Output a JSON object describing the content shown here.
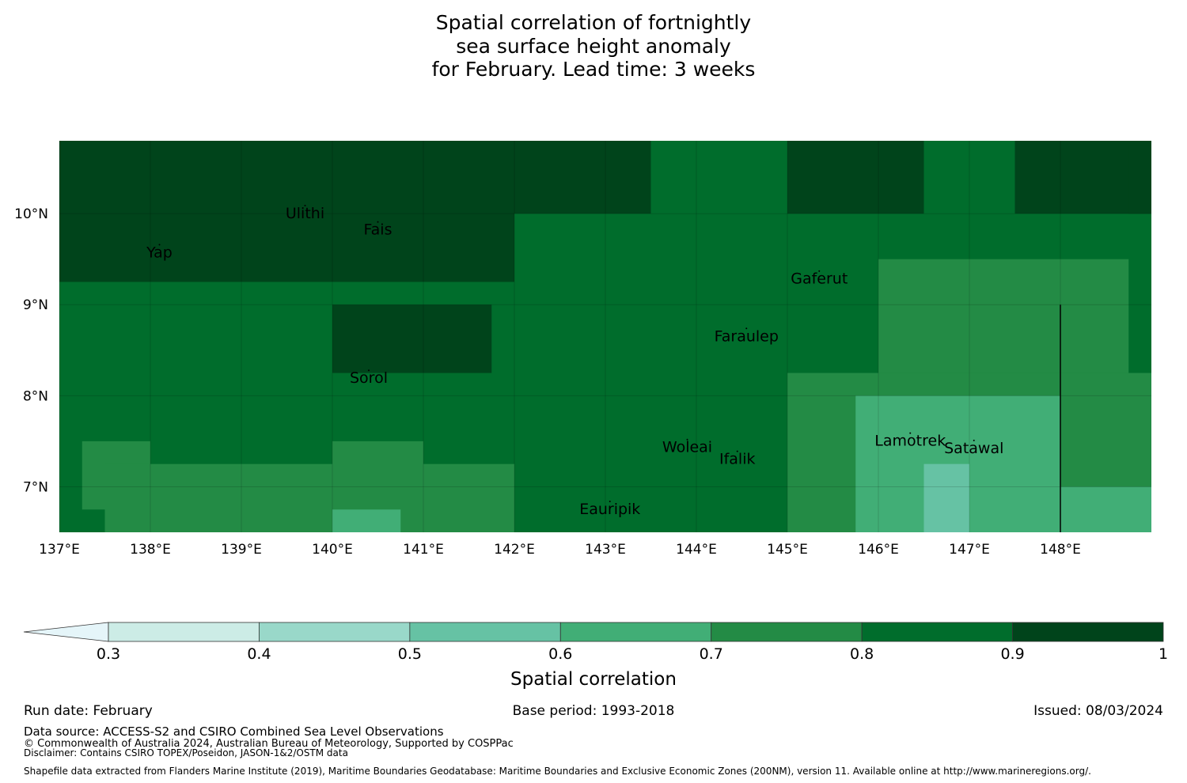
{
  "title_lines": [
    "Spatial correlation of fortnightly",
    "sea surface height anomaly",
    "for February. Lead time: 3 weeks"
  ],
  "chart_data": {
    "type": "heatmap",
    "lon_range": [
      137,
      149
    ],
    "lat_range": [
      6.5,
      10.8
    ],
    "cell_deg": 0.25,
    "x_ticks": [
      {
        "value": 137,
        "label": "137°E"
      },
      {
        "value": 138,
        "label": "138°E"
      },
      {
        "value": 139,
        "label": "139°E"
      },
      {
        "value": 140,
        "label": "140°E"
      },
      {
        "value": 141,
        "label": "141°E"
      },
      {
        "value": 142,
        "label": "142°E"
      },
      {
        "value": 143,
        "label": "143°E"
      },
      {
        "value": 144,
        "label": "144°E"
      },
      {
        "value": 145,
        "label": "145°E"
      },
      {
        "value": 146,
        "label": "146°E"
      },
      {
        "value": 147,
        "label": "147°E"
      },
      {
        "value": 148,
        "label": "148°E"
      }
    ],
    "y_ticks": [
      {
        "value": 10,
        "label": "10°N"
      },
      {
        "value": 9,
        "label": "9°N"
      },
      {
        "value": 8,
        "label": "8°N"
      },
      {
        "value": 7,
        "label": "7°N"
      }
    ],
    "levels": [
      0.3,
      0.4,
      0.5,
      0.6,
      0.7,
      0.8,
      0.9,
      1
    ],
    "level_labels": [
      "0.3",
      "0.4",
      "0.5",
      "0.6",
      "0.7",
      "0.8",
      "0.9",
      "1"
    ],
    "colors": [
      "#e5f5f9",
      "#ccece6",
      "#99d8c9",
      "#66c2a4",
      "#41ae76",
      "#238b45",
      "#006d2c",
      "#00441b"
    ],
    "colorbar_label": "Spatial correlation",
    "regions": [
      {
        "band": 0.95,
        "lon": [
          137,
          149
        ],
        "lat": [
          6.5,
          10.8
        ]
      },
      {
        "band": 0.85,
        "lon": [
          143.5,
          147.5
        ],
        "lat": [
          9.5,
          10.8
        ]
      },
      {
        "band": 0.85,
        "lon": [
          137,
          142
        ],
        "lat": [
          6.5,
          9.25
        ]
      },
      {
        "band": 0.85,
        "lon": [
          142,
          149
        ],
        "lat": [
          6.5,
          10.0
        ]
      },
      {
        "band": 0.95,
        "lon": [
          145.0,
          146.5
        ],
        "lat": [
          10.0,
          10.8
        ]
      },
      {
        "band": 0.95,
        "lon": [
          148.75,
          149
        ],
        "lat": [
          10.0,
          10.75
        ]
      },
      {
        "band": 0.95,
        "lon": [
          140,
          141.75
        ],
        "lat": [
          8.25,
          9.0
        ]
      },
      {
        "band": 0.75,
        "lon": [
          137.25,
          138.0
        ],
        "lat": [
          6.75,
          7.5
        ]
      },
      {
        "band": 0.75,
        "lon": [
          137.5,
          142
        ],
        "lat": [
          6.5,
          7.25
        ]
      },
      {
        "band": 0.75,
        "lon": [
          140,
          141.0
        ],
        "lat": [
          6.5,
          7.5
        ]
      },
      {
        "band": 0.65,
        "lon": [
          140.0,
          140.75
        ],
        "lat": [
          6.5,
          6.75
        ]
      },
      {
        "band": 0.75,
        "lon": [
          145.0,
          149
        ],
        "lat": [
          6.5,
          8.25
        ]
      },
      {
        "band": 0.75,
        "lon": [
          146.0,
          148.75
        ],
        "lat": [
          8.25,
          9.5
        ]
      },
      {
        "band": 0.65,
        "lon": [
          145.75,
          148.0
        ],
        "lat": [
          6.5,
          8.0
        ]
      },
      {
        "band": 0.65,
        "lon": [
          148.0,
          149
        ],
        "lat": [
          6.5,
          7.0
        ]
      },
      {
        "band": 0.55,
        "lon": [
          146.5,
          147.0
        ],
        "lat": [
          6.5,
          7.25
        ]
      }
    ],
    "places": [
      {
        "name": "Ulithi",
        "lon": 139.7,
        "lat": 9.95
      },
      {
        "name": "Fais",
        "lon": 140.5,
        "lat": 9.77
      },
      {
        "name": "Yap",
        "lon": 138.1,
        "lat": 9.52
      },
      {
        "name": "Gaferut",
        "lon": 145.35,
        "lat": 9.23
      },
      {
        "name": "Faraulep",
        "lon": 144.55,
        "lat": 8.6
      },
      {
        "name": "Sorol",
        "lon": 140.4,
        "lat": 8.14
      },
      {
        "name": "Woleai",
        "lon": 143.9,
        "lat": 7.38
      },
      {
        "name": "Ifalik",
        "lon": 144.45,
        "lat": 7.25
      },
      {
        "name": "Lamotrek",
        "lon": 146.35,
        "lat": 7.45
      },
      {
        "name": "Satawal",
        "lon": 147.05,
        "lat": 7.37
      },
      {
        "name": "Eauripik",
        "lon": 143.05,
        "lat": 6.7
      }
    ]
  },
  "footer": {
    "run_date": "Run date: February",
    "base_period": "Base period: 1993-2018",
    "issued": "Issued: 08/03/2024",
    "data_source": "Data source: ACCESS-S2 and CSIRO Combined Sea Level Observations",
    "copyright": "© Commonwealth of Australia 2024, Australian Bureau of Meteorology, Supported by COSPPac",
    "disclaimer": "Disclaimer: Contains CSIRO TOPEX/Poseidon, JASON-1&2/OSTM data",
    "shapefile": "Shapefile data extracted from Flanders Marine Institute (2019), Maritime Boundaries Geodatabase: Maritime Boundaries and Exclusive Economic Zones (200NM), version 11. Available online at http://www.marineregions.org/."
  }
}
